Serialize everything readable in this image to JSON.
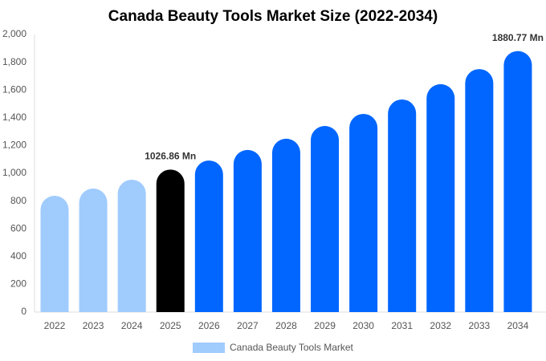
{
  "chart_data": {
    "type": "bar",
    "title": "Canada Beauty Tools Market Size (2022-2034)",
    "categories": [
      "2022",
      "2023",
      "2024",
      "2025",
      "2026",
      "2027",
      "2028",
      "2029",
      "2030",
      "2031",
      "2032",
      "2033",
      "2034"
    ],
    "series": [
      {
        "name": "Canada Beauty Tools Market",
        "color": "#a0cbfd",
        "colors": [
          "#a0cbfd",
          "#a0cbfd",
          "#a0cbfd",
          "#000000",
          "#0066ff",
          "#0066ff",
          "#0066ff",
          "#0066ff",
          "#0066ff",
          "#0066ff",
          "#0066ff",
          "#0066ff",
          "#0066ff"
        ],
        "values": [
          838,
          890,
          954,
          1026.86,
          1092,
          1168,
          1249,
          1341,
          1428,
          1532,
          1642,
          1751,
          1880.77
        ],
        "value_labels": [
          null,
          null,
          null,
          "1026.86 Mn",
          null,
          null,
          null,
          null,
          null,
          null,
          null,
          null,
          "1880.77 Mn"
        ]
      }
    ],
    "ylim": [
      0,
      2000
    ],
    "yticks": [
      0,
      200,
      400,
      600,
      800,
      {
        "value": 1000,
        "label": "1,000"
      },
      {
        "value": 1200,
        "label": "1,200"
      },
      {
        "value": 1400,
        "label": "1,400"
      },
      {
        "value": 1600,
        "label": "1,600"
      },
      {
        "value": 1800,
        "label": "1,800"
      },
      {
        "value": 2000,
        "label": "2,000"
      }
    ],
    "grid": false
  }
}
